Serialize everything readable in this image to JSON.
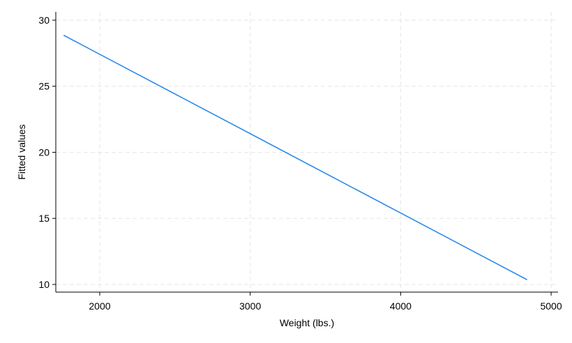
{
  "chart_data": {
    "type": "line",
    "x_label": "Weight (lbs.)",
    "y_label": "Fitted values",
    "x": [
      1760,
      4840
    ],
    "values": [
      28.86,
      10.36
    ],
    "color": "#1f83e8",
    "xlim": [
      1708,
      5046
    ],
    "xticks": [
      2000,
      3000,
      4000,
      5000
    ],
    "ylim": [
      9.42,
      30.63
    ],
    "yticks": [
      10,
      15,
      20,
      25,
      30
    ],
    "grid": true
  }
}
